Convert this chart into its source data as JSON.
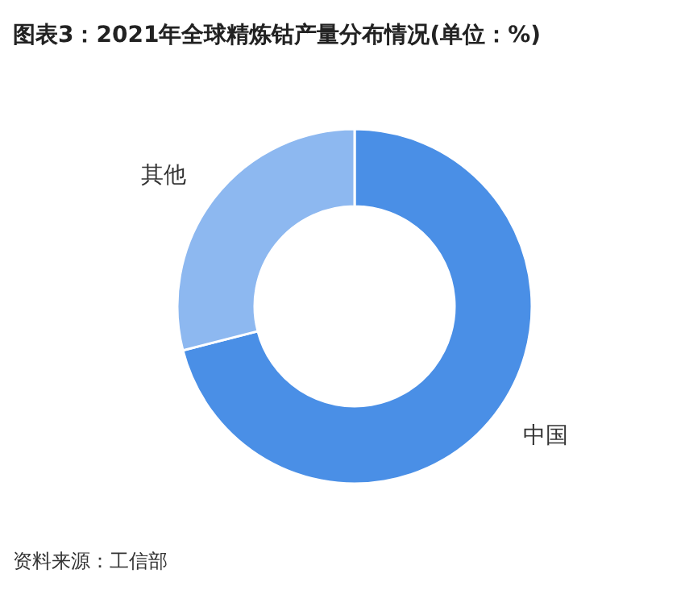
{
  "chart_data": {
    "type": "donut",
    "title": "图表3：2021年全球精炼钴产量分布情况(单位：%)",
    "categories": [
      "中国",
      "其他"
    ],
    "values": [
      71,
      29
    ],
    "colors": [
      "#4a8fe6",
      "#8db8f0"
    ],
    "annotations": [
      "资料来源：工信部"
    ]
  }
}
